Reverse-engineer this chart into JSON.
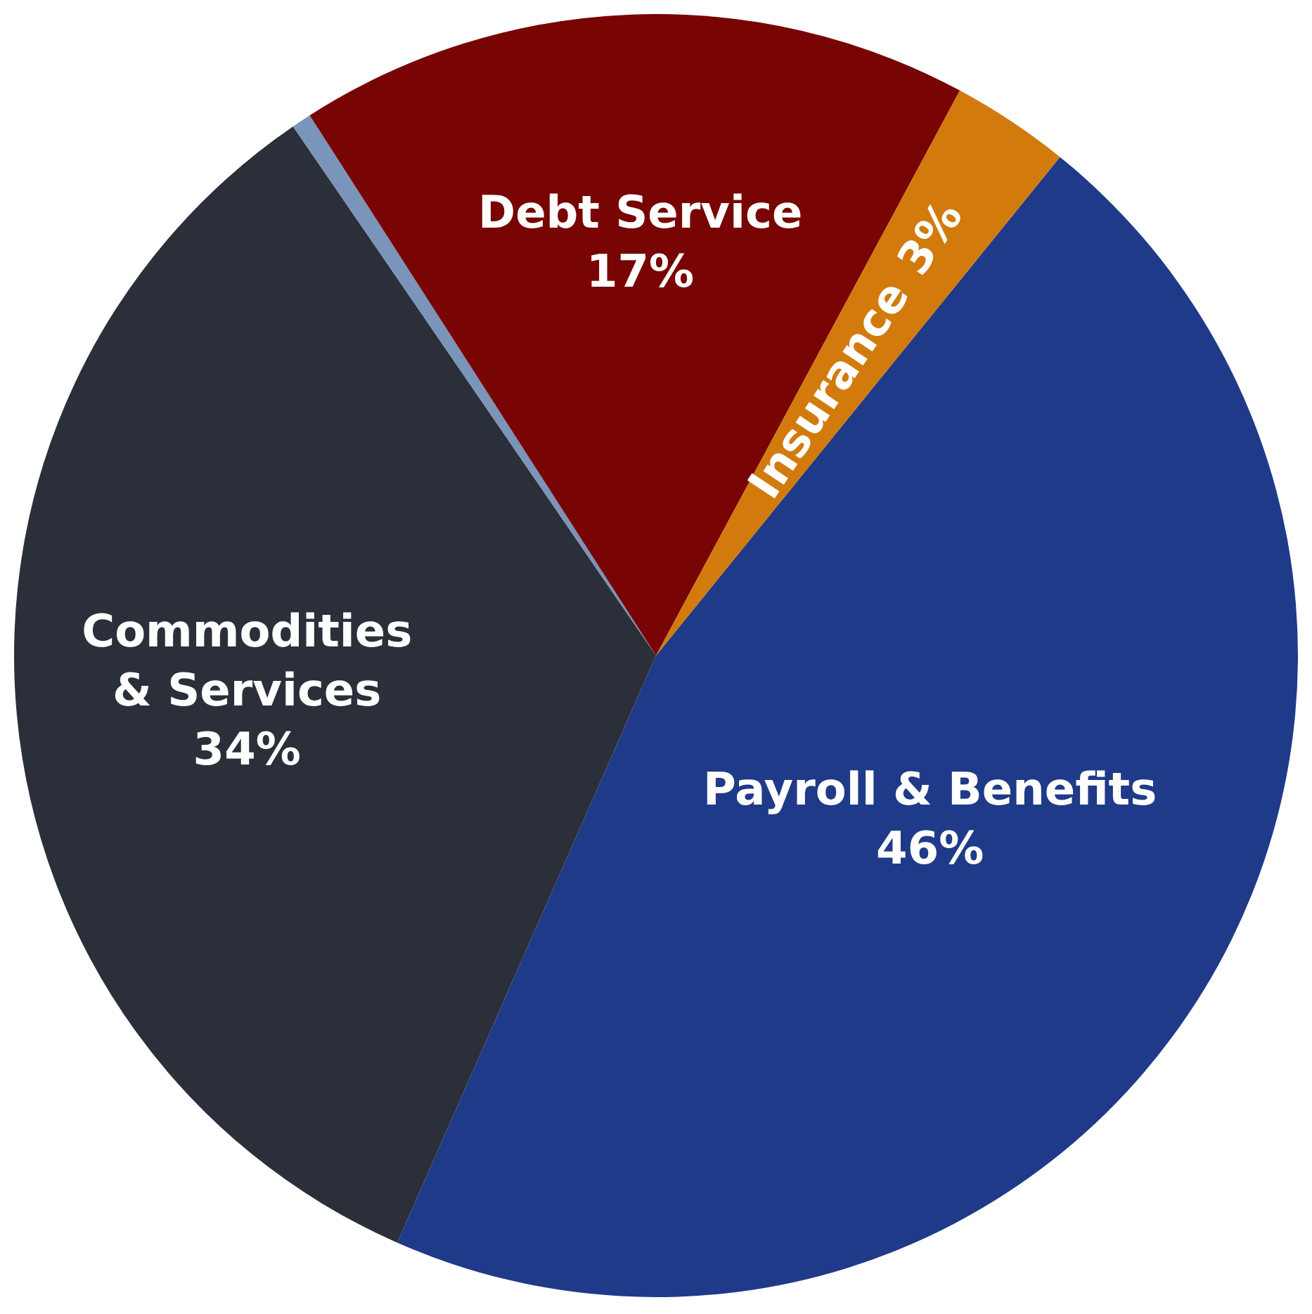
{
  "chart_data": {
    "type": "pie",
    "categories": [
      "Payroll & Benefits",
      "Commodities & Services",
      null,
      "Debt Service",
      "Insurance"
    ],
    "values": [
      46,
      34,
      0.5,
      17,
      3
    ],
    "value_labels": [
      "46%",
      "34%",
      null,
      "17%",
      "3%"
    ],
    "colors": [
      "#1f3a88",
      "#2b2f39",
      "#7b94ba",
      "#780404",
      "#d27b0c"
    ],
    "legend": false
  }
}
